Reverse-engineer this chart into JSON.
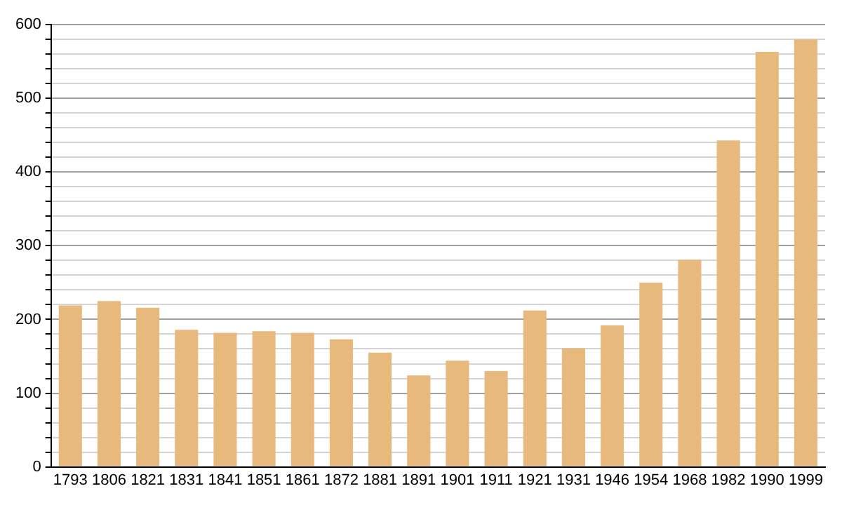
{
  "chart_data": {
    "type": "bar",
    "categories": [
      "1793",
      "1806",
      "1821",
      "1831",
      "1841",
      "1851",
      "1861",
      "1872",
      "1881",
      "1891",
      "1901",
      "1911",
      "1921",
      "1931",
      "1946",
      "1954",
      "1968",
      "1982",
      "1990",
      "1999"
    ],
    "values": [
      219,
      225,
      216,
      186,
      182,
      184,
      182,
      173,
      155,
      124,
      144,
      130,
      212,
      161,
      192,
      250,
      281,
      443,
      563,
      580
    ],
    "color": "#e8b97c",
    "ylim": [
      0,
      600
    ],
    "yticks": [
      0,
      {
        "value": 20,
        "label": null
      },
      {
        "value": 40,
        "label": null
      },
      {
        "value": 60,
        "label": null
      },
      {
        "value": 80,
        "label": null
      },
      100,
      {
        "value": 120,
        "label": null
      },
      {
        "value": 140,
        "label": null
      },
      {
        "value": 160,
        "label": null
      },
      {
        "value": 180,
        "label": null
      },
      200,
      {
        "value": 220,
        "label": null
      },
      {
        "value": 240,
        "label": null
      },
      {
        "value": 260,
        "label": null
      },
      {
        "value": 280,
        "label": null
      },
      300,
      {
        "value": 320,
        "label": null
      },
      {
        "value": 340,
        "label": null
      },
      {
        "value": 360,
        "label": null
      },
      {
        "value": 380,
        "label": null
      },
      400,
      {
        "value": 420,
        "label": null
      },
      {
        "value": 440,
        "label": null
      },
      {
        "value": 460,
        "label": null
      },
      {
        "value": 480,
        "label": null
      },
      500,
      {
        "value": 520,
        "label": null
      },
      {
        "value": 540,
        "label": null
      },
      {
        "value": 560,
        "label": null
      },
      {
        "value": 580,
        "label": null
      },
      600
    ],
    "grid": "y"
  }
}
